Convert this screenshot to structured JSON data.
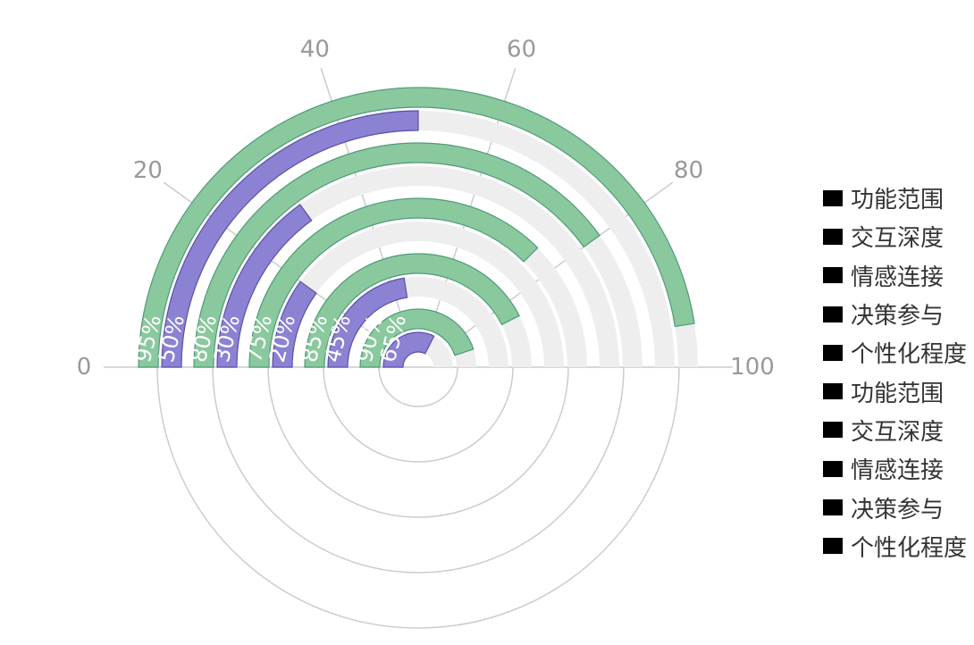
{
  "chart_data": {
    "type": "radial-bar",
    "angle_axis": {
      "min": 0,
      "max": 100,
      "ticks": [
        0,
        20,
        40,
        60,
        80,
        100
      ]
    },
    "categories": [
      "功能范围",
      "交互深度",
      "情感连接",
      "决策参与",
      "个性化程度"
    ],
    "series": [
      {
        "color": "#8ac99d",
        "values": [
          95,
          80,
          75,
          85,
          90
        ]
      },
      {
        "color": "#8b82d4",
        "values": [
          50,
          30,
          20,
          45,
          65
        ]
      }
    ],
    "value_labels": [
      [
        "95%",
        "80%",
        "75%",
        "85%",
        "90%"
      ],
      [
        "50%",
        "30%",
        "20%",
        "45%",
        "65%"
      ]
    ],
    "background_color": "#eeeeee",
    "grid": true,
    "legend": {
      "position": "right",
      "items": [
        "功能范围",
        "交互深度",
        "情感连接",
        "决策参与",
        "个性化程度",
        "功能范围",
        "交互深度",
        "情感连接",
        "决策参与",
        "个性化程度"
      ]
    }
  }
}
